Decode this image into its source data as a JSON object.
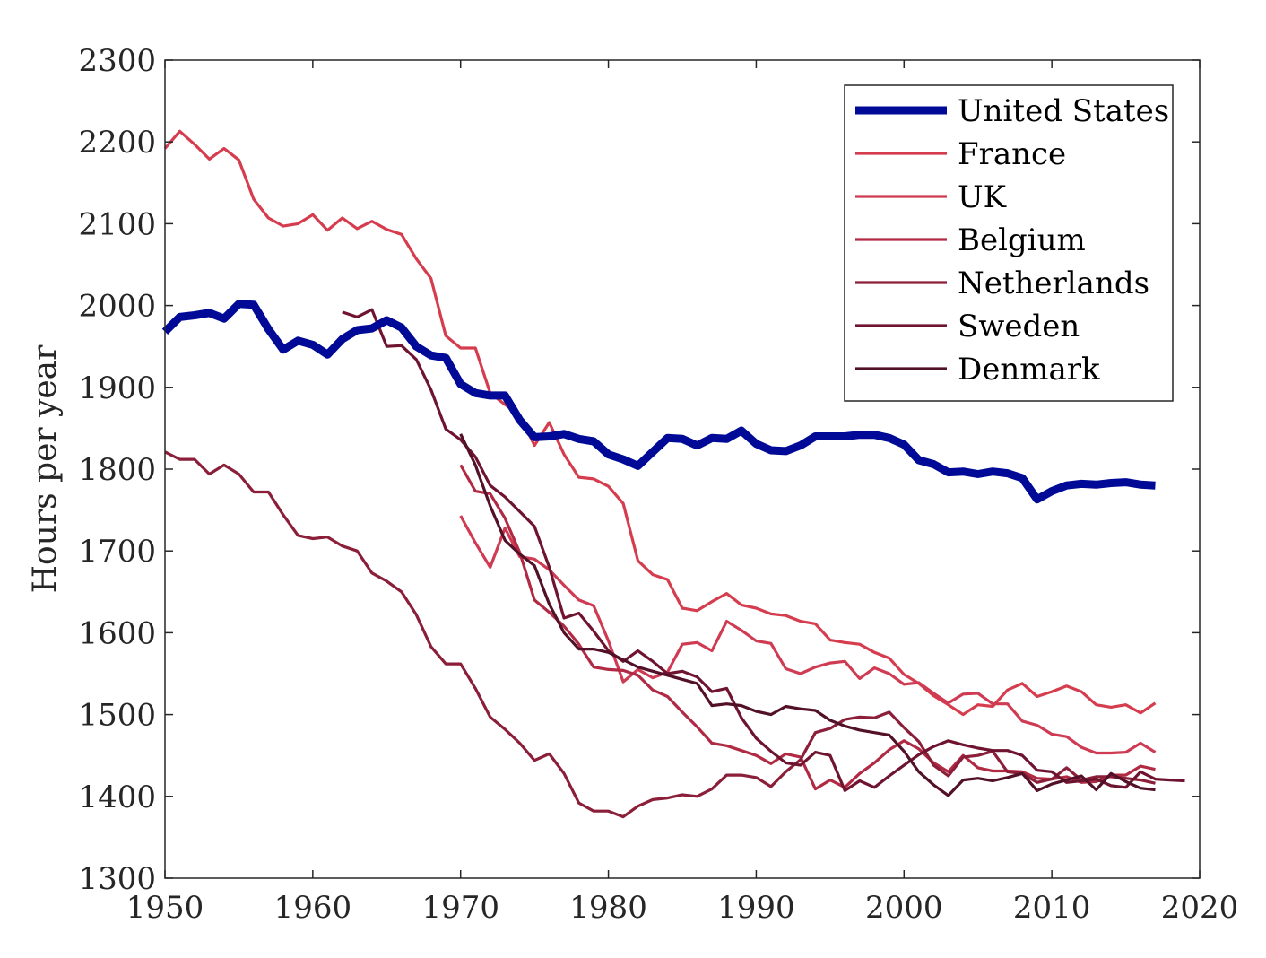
{
  "chart_data": {
    "type": "line",
    "xlabel": "",
    "ylabel": "Hours per year",
    "xlim": [
      1950,
      2020
    ],
    "ylim": [
      1300,
      2300
    ],
    "xticks": [
      1950,
      1960,
      1970,
      1980,
      1990,
      2000,
      2010,
      2020
    ],
    "yticks": [
      1300,
      1400,
      1500,
      1600,
      1700,
      1800,
      1900,
      2000,
      2100,
      2200,
      2300
    ],
    "grid": false,
    "legend_position": "top-right",
    "series": [
      {
        "name": "United States",
        "color": "#000a96",
        "emphasis": true,
        "x_start": 1950,
        "values": [
          1968,
          1986,
          1988,
          1991,
          1984,
          2002,
          2001,
          1971,
          1946,
          1957,
          1952,
          1940,
          1959,
          1970,
          1972,
          1982,
          1973,
          1950,
          1939,
          1936,
          1904,
          1893,
          1890,
          1890,
          1860,
          1839,
          1840,
          1843,
          1837,
          1834,
          1818,
          1812,
          1804,
          1821,
          1838,
          1837,
          1829,
          1838,
          1837,
          1847,
          1831,
          1823,
          1822,
          1829,
          1840,
          1840,
          1840,
          1842,
          1842,
          1838,
          1830,
          1811,
          1806,
          1796,
          1797,
          1794,
          1797,
          1795,
          1789,
          1763,
          1773,
          1780,
          1782,
          1781,
          1783,
          1784,
          1781,
          1780
        ]
      },
      {
        "name": "France",
        "color": "#d53d4e",
        "x_start": 1950,
        "values": [
          2192,
          2213,
          2197,
          2179,
          2192,
          2178,
          2130,
          2107,
          2097,
          2100,
          2111,
          2092,
          2107,
          2094,
          2103,
          2093,
          2087,
          2057,
          2033,
          1963,
          1948,
          1948,
          1893,
          1879,
          1866,
          1829,
          1857,
          1818,
          1790,
          1788,
          1779,
          1758,
          1688,
          1671,
          1665,
          1630,
          1627,
          1638,
          1648,
          1634,
          1630,
          1623,
          1621,
          1614,
          1611,
          1591,
          1588,
          1586,
          1576,
          1569,
          1549,
          1538,
          1523,
          1512,
          1500,
          1512,
          1510,
          1530,
          1538,
          1522,
          1528,
          1535,
          1528,
          1512,
          1509,
          1512,
          1502,
          1514
        ]
      },
      {
        "name": "UK",
        "color": "#cf3b52",
        "x_start": 1970,
        "values": [
          1743,
          1710,
          1680,
          1728,
          1693,
          1690,
          1677,
          1658,
          1640,
          1633,
          1590,
          1540,
          1555,
          1545,
          1552,
          1586,
          1588,
          1578,
          1614,
          1603,
          1590,
          1587,
          1556,
          1550,
          1558,
          1563,
          1565,
          1544,
          1557,
          1550,
          1537,
          1539,
          1526,
          1514,
          1525,
          1526,
          1513,
          1513,
          1492,
          1487,
          1476,
          1473,
          1460,
          1453,
          1453,
          1454,
          1465,
          1454
        ]
      },
      {
        "name": "Belgium",
        "color": "#b12a44",
        "x_start": 1970,
        "values": [
          1805,
          1773,
          1770,
          1740,
          1698,
          1640,
          1625,
          1608,
          1586,
          1558,
          1555,
          1554,
          1548,
          1530,
          1522,
          1503,
          1485,
          1465,
          1462,
          1456,
          1450,
          1440,
          1452,
          1448,
          1409,
          1420,
          1411,
          1428,
          1441,
          1457,
          1468,
          1458,
          1441,
          1430,
          1450,
          1435,
          1431,
          1431,
          1430,
          1422,
          1421,
          1424,
          1417,
          1418,
          1426,
          1426,
          1437,
          1433
        ]
      },
      {
        "name": "Netherlands",
        "color": "#8b1e38",
        "x_start": 1950,
        "values": [
          1821,
          1812,
          1812,
          1794,
          1805,
          1794,
          1772,
          1772,
          1744,
          1719,
          1715,
          1717,
          1706,
          1700,
          1673,
          1663,
          1650,
          1622,
          1583,
          1562,
          1562,
          1532,
          1497,
          1482,
          1465,
          1444,
          1452,
          1428,
          1392,
          1382,
          1382,
          1375,
          1388,
          1396,
          1398,
          1402,
          1400,
          1409,
          1426,
          1426,
          1423,
          1412,
          1430,
          1445,
          1478,
          1483,
          1494,
          1497,
          1496,
          1503,
          1484,
          1467,
          1438,
          1425,
          1448,
          1450,
          1455,
          1430,
          1428,
          1417,
          1421,
          1435,
          1420,
          1424,
          1424,
          1422,
          1420,
          1416
        ]
      },
      {
        "name": "Sweden",
        "color": "#6f1430",
        "x_start": 1962,
        "values": [
          1992,
          1986,
          1995,
          1950,
          1951,
          1934,
          1897,
          1849,
          1836,
          1815,
          1780,
          1766,
          1748,
          1730,
          1680,
          1618,
          1624,
          1602,
          1578,
          1565,
          1578,
          1565,
          1550,
          1553,
          1546,
          1528,
          1532,
          1496,
          1471,
          1455,
          1441,
          1438,
          1454,
          1450,
          1407,
          1419,
          1411,
          1425,
          1438,
          1451,
          1461,
          1468,
          1463,
          1459,
          1456,
          1456,
          1450,
          1432,
          1430,
          1417,
          1419,
          1421,
          1413,
          1411,
          1430,
          1421,
          1420,
          1419
        ]
      },
      {
        "name": "Denmark",
        "color": "#521128",
        "x_start": 1970,
        "values": [
          1843,
          1805,
          1755,
          1713,
          1696,
          1682,
          1635,
          1600,
          1580,
          1580,
          1576,
          1567,
          1558,
          1553,
          1548,
          1543,
          1538,
          1511,
          1513,
          1511,
          1504,
          1500,
          1510,
          1507,
          1505,
          1493,
          1486,
          1481,
          1478,
          1475,
          1455,
          1430,
          1414,
          1401,
          1420,
          1422,
          1419,
          1423,
          1428,
          1407,
          1415,
          1420,
          1425,
          1408,
          1428,
          1418,
          1410,
          1408
        ]
      }
    ]
  }
}
